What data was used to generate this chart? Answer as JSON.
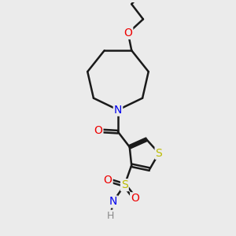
{
  "bg_color": "#ebebeb",
  "bond_color": "#1a1a1a",
  "bond_width": 1.8,
  "atom_colors": {
    "N": "#0000ee",
    "O": "#ee0000",
    "S": "#bbbb00",
    "H": "#888888",
    "C": "#1a1a1a"
  },
  "font_size_atom": 10,
  "figsize": [
    3.0,
    3.0
  ],
  "dpi": 100
}
